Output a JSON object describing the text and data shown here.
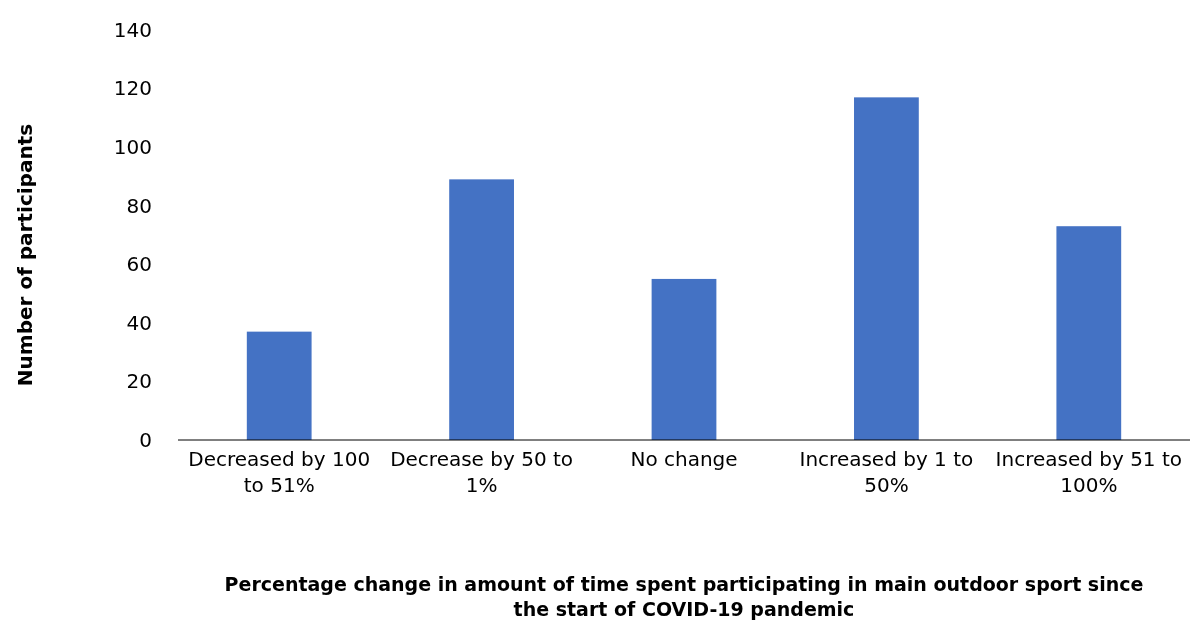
{
  "chart_data": {
    "type": "bar",
    "xlabel": "Percentage change in amount of time spent participating in main outdoor sport since the start of COVID-19 pandemic",
    "ylabel": "Number of participants",
    "categories": [
      "Decreased by 100 to 51%",
      "Decrease by 50 to 1%",
      "No change",
      "Increased by 1 to 50%",
      "Increased by 51 to 100%"
    ],
    "values": [
      37,
      89,
      55,
      117,
      73
    ],
    "color": "#4472c4",
    "ylim": [
      0,
      140
    ],
    "yticks": [
      0,
      20,
      40,
      60,
      80,
      100,
      120,
      140
    ],
    "grid": false
  }
}
